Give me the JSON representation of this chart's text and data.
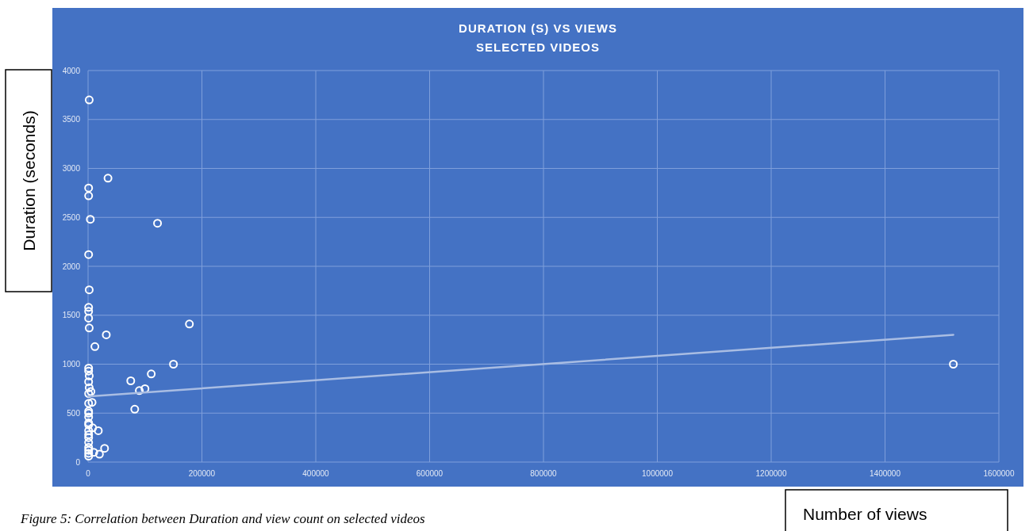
{
  "chart_data": {
    "type": "scatter",
    "title": "DURATION (S) VS VIEWS",
    "subtitle": "SELECTED VIDEOS",
    "xlabel": "Number of views",
    "ylabel": "Duration (seconds)",
    "annotations": [
      "Figure 5: Correlation between Duration and view count on selected videos"
    ],
    "xlim": [
      0,
      1600000
    ],
    "xticks": [
      0,
      200000,
      400000,
      600000,
      800000,
      1000000,
      1200000,
      1400000,
      1600000
    ],
    "ylim": [
      0,
      4000
    ],
    "yticks": [
      0,
      500,
      1000,
      1500,
      2000,
      2500,
      3000,
      3500,
      4000
    ],
    "grid": true,
    "series": [
      {
        "color": "#ffffff",
        "marker": "circle",
        "x": [
          2000,
          35000,
          1000,
          1000,
          4000,
          122000,
          1000,
          2000,
          1000,
          1000,
          1000,
          2000,
          32000,
          12000,
          178000,
          150000,
          111000,
          75000,
          100000,
          90000,
          82000,
          1520000,
          1000,
          1000,
          2000,
          1000,
          5000,
          2000,
          1000,
          7000,
          1000,
          1000,
          1000,
          1000,
          1000,
          1000,
          8000,
          1000,
          18000,
          1000,
          1000,
          1000,
          1000,
          1000,
          29000,
          10000,
          20000,
          1000,
          1000
        ],
        "values": [
          3700,
          2900,
          2800,
          2720,
          2480,
          2440,
          2120,
          1760,
          1580,
          1540,
          1470,
          1370,
          1300,
          1180,
          1410,
          1000,
          900,
          830,
          750,
          730,
          540,
          1000,
          960,
          930,
          880,
          820,
          720,
          760,
          700,
          610,
          600,
          520,
          500,
          460,
          400,
          380,
          350,
          320,
          320,
          280,
          250,
          200,
          150,
          120,
          140,
          100,
          80,
          60,
          90
        ]
      },
      {
        "type": "line",
        "color": "#a9bde3",
        "x": [
          0,
          1520000
        ],
        "values": [
          670,
          1300
        ]
      }
    ]
  }
}
